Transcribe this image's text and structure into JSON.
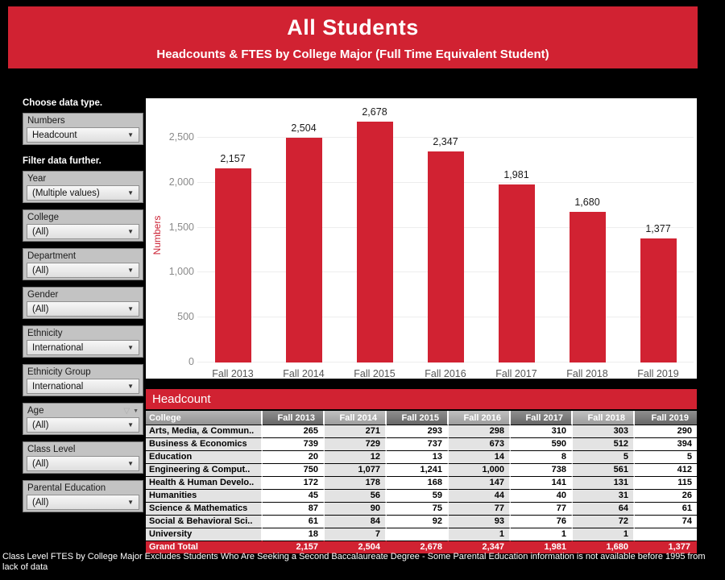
{
  "banner": {
    "title": "All Students",
    "subtitle": "Headcounts & FTES by College Major (Full Time Equivalent Student)"
  },
  "sidebar": {
    "choose_label": "Choose data type.",
    "filter_label": "Filter data further.",
    "filters": [
      {
        "label": "Numbers",
        "value": "Headcount",
        "header_icons": false
      },
      {
        "label": "Year",
        "value": "(Multiple values)",
        "header_icons": false
      },
      {
        "label": "College",
        "value": "(All)",
        "header_icons": false
      },
      {
        "label": "Department",
        "value": "(All)",
        "header_icons": false
      },
      {
        "label": "Gender",
        "value": "(All)",
        "header_icons": false
      },
      {
        "label": "Ethnicity",
        "value": "International",
        "header_icons": false
      },
      {
        "label": "Ethnicity Group",
        "value": "International",
        "header_icons": false
      },
      {
        "label": "Age",
        "value": "(All)",
        "header_icons": true
      },
      {
        "label": "Class Level",
        "value": "(All)",
        "header_icons": false
      },
      {
        "label": "Parental Education",
        "value": "(All)",
        "header_icons": false
      }
    ]
  },
  "chart_data": {
    "type": "bar",
    "title": "",
    "ylabel": "Numbers",
    "xlabel": "",
    "categories": [
      "Fall 2013",
      "Fall 2014",
      "Fall 2015",
      "Fall 2016",
      "Fall 2017",
      "Fall 2018",
      "Fall 2019"
    ],
    "values": [
      2157,
      2504,
      2678,
      2347,
      1981,
      1680,
      1377
    ],
    "value_labels": [
      "2,157",
      "2,504",
      "2,678",
      "2,347",
      "1,981",
      "1,680",
      "1,377"
    ],
    "yticks": [
      0,
      500,
      1000,
      1500,
      2000,
      2500
    ],
    "ytick_labels": [
      "0",
      "500",
      "1,000",
      "1,500",
      "2,000",
      "2,500"
    ],
    "ylim": [
      0,
      2940
    ],
    "grid": true,
    "legend": "none",
    "bar_color": "#d12232"
  },
  "table": {
    "banner": "Headcount",
    "columns": [
      "College",
      "Fall 2013",
      "Fall 2014",
      "Fall 2015",
      "Fall 2016",
      "Fall 2017",
      "Fall 2018",
      "Fall 2019"
    ],
    "rows": [
      {
        "name": "Arts, Media, & Commun..",
        "values": [
          "265",
          "271",
          "293",
          "298",
          "310",
          "303",
          "290"
        ]
      },
      {
        "name": "Business & Economics",
        "values": [
          "739",
          "729",
          "737",
          "673",
          "590",
          "512",
          "394"
        ]
      },
      {
        "name": "Education",
        "values": [
          "20",
          "12",
          "13",
          "14",
          "8",
          "5",
          "5"
        ]
      },
      {
        "name": "Engineering & Comput..",
        "values": [
          "750",
          "1,077",
          "1,241",
          "1,000",
          "738",
          "561",
          "412"
        ]
      },
      {
        "name": "Health & Human Develo..",
        "values": [
          "172",
          "178",
          "168",
          "147",
          "141",
          "131",
          "115"
        ]
      },
      {
        "name": "Humanities",
        "values": [
          "45",
          "56",
          "59",
          "44",
          "40",
          "31",
          "26"
        ]
      },
      {
        "name": "Science & Mathematics",
        "values": [
          "87",
          "90",
          "75",
          "77",
          "77",
          "64",
          "61"
        ]
      },
      {
        "name": "Social & Behavioral Sci..",
        "values": [
          "61",
          "84",
          "92",
          "93",
          "76",
          "72",
          "74"
        ]
      },
      {
        "name": "University",
        "values": [
          "18",
          "7",
          "",
          "1",
          "1",
          "1",
          ""
        ]
      }
    ],
    "grand_total": {
      "name": "Grand Total",
      "values": [
        "2,157",
        "2,504",
        "2,678",
        "2,347",
        "1,981",
        "1,680",
        "1,377"
      ]
    }
  },
  "footer": {
    "note": "Class Level FTES by College Major Excludes Students Who Are Seeking a Second Baccalaureate Degree - Some Parental Education information is not available before 1995 from lack of data"
  },
  "colors": {
    "accent_red": "#d12232",
    "background": "#000000",
    "panel_white": "#ffffff"
  }
}
